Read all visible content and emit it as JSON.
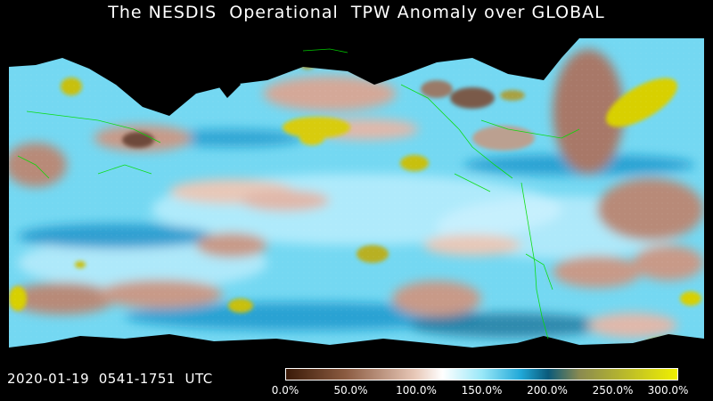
{
  "title": "The NESDIS  Operational  TPW Anomaly over GLOBAL",
  "timestamp": "2020-01-19  0541-1751  UTC",
  "colorbar": {
    "ticks": [
      "0.0%",
      "50.0%",
      "100.0%",
      "150.0%",
      "200.0%",
      "250.0%",
      "300.0%"
    ],
    "stops": [
      {
        "color": "#3a1a08",
        "value": 0.0
      },
      {
        "color": "#8a5a40",
        "value": 0.15
      },
      {
        "color": "#e8c8b8",
        "value": 0.33
      },
      {
        "color": "#ffffff",
        "value": 0.4
      },
      {
        "color": "#9ae8f8",
        "value": 0.5
      },
      {
        "color": "#20a8d8",
        "value": 0.6
      },
      {
        "color": "#0a5a7a",
        "value": 0.67
      },
      {
        "color": "#8a8a50",
        "value": 0.75
      },
      {
        "color": "#f0f000",
        "value": 1.0
      }
    ]
  },
  "colors": {
    "background": "#000000",
    "wet": "#5ad0f0",
    "dry": "#c89a88",
    "extreme": "#d8d000",
    "coast": "#00dd00"
  }
}
